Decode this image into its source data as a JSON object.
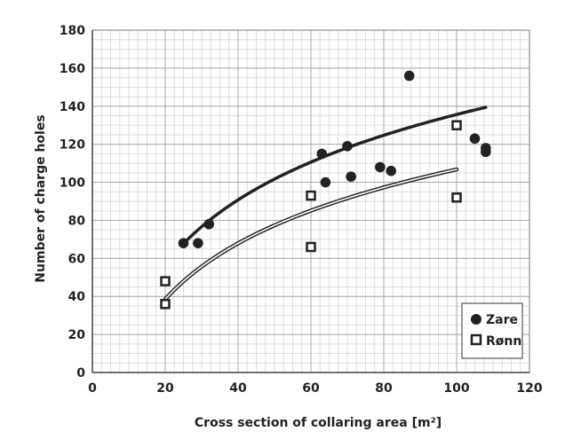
{
  "chart_data": {
    "type": "scatter",
    "xlabel": "Cross section of collaring area [m²]",
    "ylabel": "Number of charge holes",
    "xlim": [
      0,
      120
    ],
    "ylim": [
      0,
      180
    ],
    "x_ticks": [
      0,
      20,
      40,
      60,
      80,
      100,
      120
    ],
    "y_ticks": [
      0,
      20,
      40,
      60,
      80,
      100,
      120,
      140,
      160,
      180
    ],
    "x_minor_step": 2.5,
    "y_minor_step": 5,
    "grid": true,
    "legend_position": "bottom-right",
    "series": [
      {
        "name": "Zare",
        "marker": "filled-circle",
        "color": "#222222",
        "points": [
          {
            "x": 25,
            "y": 68
          },
          {
            "x": 29,
            "y": 68
          },
          {
            "x": 32,
            "y": 78
          },
          {
            "x": 63,
            "y": 115
          },
          {
            "x": 64,
            "y": 100
          },
          {
            "x": 70,
            "y": 119
          },
          {
            "x": 71,
            "y": 103
          },
          {
            "x": 79,
            "y": 108
          },
          {
            "x": 82,
            "y": 106
          },
          {
            "x": 87,
            "y": 156
          },
          {
            "x": 105,
            "y": 123
          },
          {
            "x": 108,
            "y": 118
          },
          {
            "x": 108,
            "y": 116
          }
        ],
        "trend": {
          "type": "logarithmic",
          "a": 49,
          "b": -90,
          "x_from": 25,
          "x_to": 108,
          "style": "thick"
        }
      },
      {
        "name": "Rønn",
        "marker": "open-square",
        "color": "#222222",
        "points": [
          {
            "x": 20,
            "y": 48
          },
          {
            "x": 20,
            "y": 36
          },
          {
            "x": 60,
            "y": 93
          },
          {
            "x": 60,
            "y": 66
          },
          {
            "x": 100,
            "y": 130
          },
          {
            "x": 100,
            "y": 92
          }
        ],
        "trend": {
          "type": "logarithmic",
          "a": 42.4,
          "b": -88.5,
          "x_from": 20,
          "x_to": 100,
          "style": "double"
        }
      }
    ]
  }
}
